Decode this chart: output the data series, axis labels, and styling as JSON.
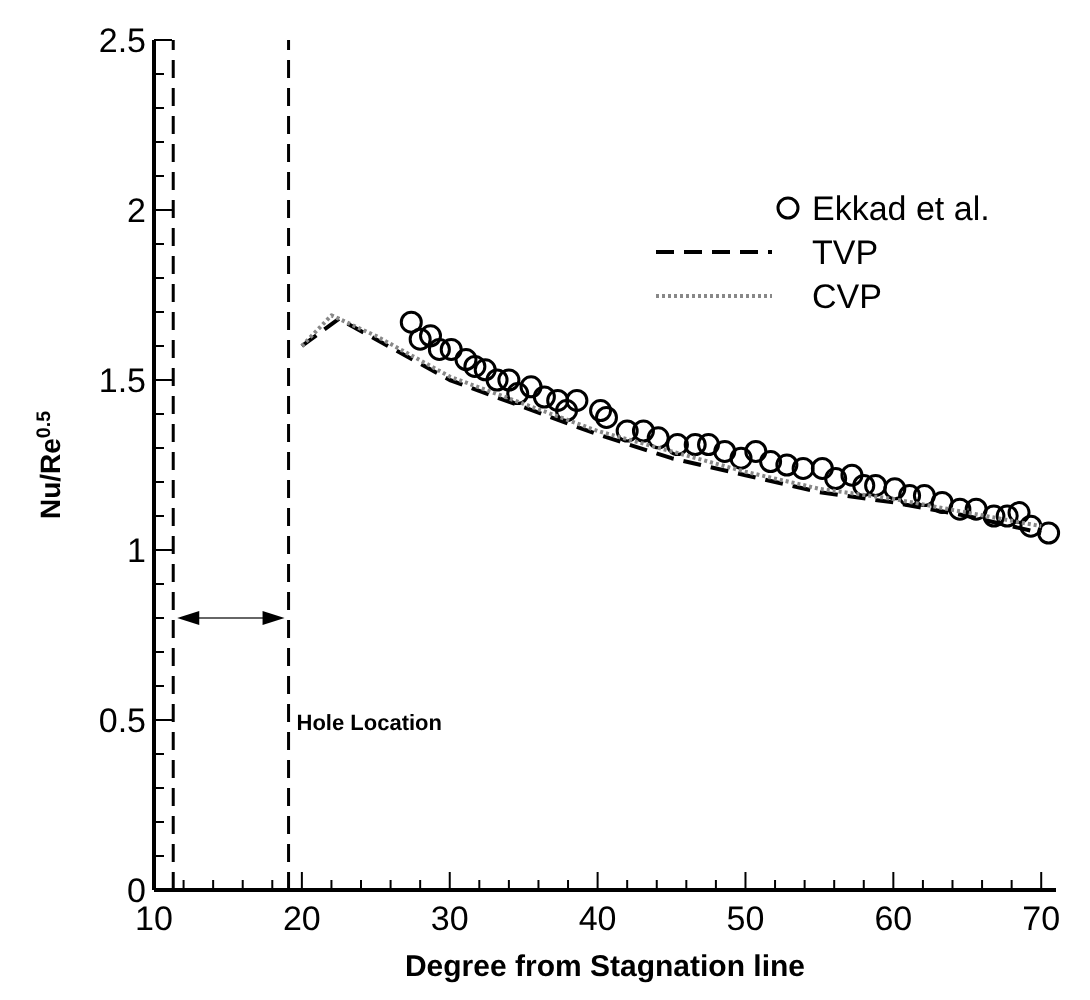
{
  "chart_data": {
    "type": "line",
    "xlabel": "Degree from Stagnation line",
    "ylabel": "Nu/Re$^{0.5}$",
    "xlim": [
      10,
      71
    ],
    "ylim": [
      0,
      2.5
    ],
    "xticks": [
      10,
      {
        "value": 12,
        "label": null
      },
      {
        "value": 14,
        "label": null
      },
      {
        "value": 16,
        "label": null
      },
      {
        "value": 18,
        "label": null
      },
      20,
      {
        "value": 22,
        "label": null
      },
      {
        "value": 24,
        "label": null
      },
      {
        "value": 26,
        "label": null
      },
      {
        "value": 28,
        "label": null
      },
      30,
      {
        "value": 32,
        "label": null
      },
      {
        "value": 34,
        "label": null
      },
      {
        "value": 36,
        "label": null
      },
      {
        "value": 38,
        "label": null
      },
      40,
      {
        "value": 42,
        "label": null
      },
      {
        "value": 44,
        "label": null
      },
      {
        "value": 46,
        "label": null
      },
      {
        "value": 48,
        "label": null
      },
      50,
      {
        "value": 52,
        "label": null
      },
      {
        "value": 54,
        "label": null
      },
      {
        "value": 56,
        "label": null
      },
      {
        "value": 58,
        "label": null
      },
      60,
      {
        "value": 62,
        "label": null
      },
      {
        "value": 64,
        "label": null
      },
      {
        "value": 66,
        "label": null
      },
      {
        "value": 68,
        "label": null
      },
      70
    ],
    "yticks": [
      0,
      {
        "value": 0.1,
        "label": null
      },
      {
        "value": 0.2,
        "label": null
      },
      {
        "value": 0.3,
        "label": null
      },
      {
        "value": 0.4,
        "label": null
      },
      0.5,
      {
        "value": 0.6,
        "label": null
      },
      {
        "value": 0.7,
        "label": null
      },
      {
        "value": 0.8,
        "label": null
      },
      {
        "value": 0.9,
        "label": null
      },
      1,
      {
        "value": 1.1,
        "label": null
      },
      {
        "value": 1.2,
        "label": null
      },
      {
        "value": 1.3,
        "label": null
      },
      {
        "value": 1.4,
        "label": null
      },
      1.5,
      {
        "value": 1.6,
        "label": null
      },
      {
        "value": 1.7,
        "label": null
      },
      {
        "value": 1.8,
        "label": null
      },
      {
        "value": 1.9,
        "label": null
      },
      2,
      {
        "value": 2.1,
        "label": null
      },
      {
        "value": 2.2,
        "label": null
      },
      {
        "value": 2.3,
        "label": null
      },
      {
        "value": 2.4,
        "label": null
      },
      2.5
    ],
    "grid": false,
    "legend": "top right",
    "series": [
      {
        "name": "Ekkad et al.",
        "type": "scatter",
        "marker": "circle",
        "color": "#000000",
        "x": [
          27.4,
          28,
          28.7,
          29.3,
          30.1,
          31.1,
          31.7,
          32.4,
          33.2,
          34,
          34.6,
          35.5,
          36.4,
          37.3,
          37.9,
          38.6,
          40.2,
          40.6,
          42,
          43.1,
          44.1,
          45.4,
          46.6,
          47.5,
          48.6,
          49.7,
          50.7,
          51.7,
          52.8,
          53.9,
          55.2,
          56.1,
          57.2,
          58,
          58.8,
          60.1,
          61.1,
          62.1,
          63.3,
          64.5,
          65.6,
          66.8,
          67.7,
          68.5,
          69.3,
          70.5
        ],
        "values": [
          1.67,
          1.62,
          1.63,
          1.59,
          1.59,
          1.56,
          1.54,
          1.53,
          1.5,
          1.5,
          1.46,
          1.48,
          1.45,
          1.44,
          1.41,
          1.44,
          1.41,
          1.39,
          1.35,
          1.35,
          1.33,
          1.31,
          1.31,
          1.31,
          1.29,
          1.27,
          1.29,
          1.26,
          1.25,
          1.24,
          1.24,
          1.21,
          1.22,
          1.19,
          1.19,
          1.18,
          1.16,
          1.16,
          1.14,
          1.12,
          1.12,
          1.1,
          1.1,
          1.11,
          1.07,
          1.05
        ]
      },
      {
        "name": "TVP",
        "type": "line",
        "line_style": "dashed",
        "color": "#000000",
        "x": [
          20,
          22.5,
          25,
          30,
          35,
          40,
          45,
          50,
          55,
          60,
          65,
          70
        ],
        "values": [
          1.6,
          1.68,
          1.62,
          1.5,
          1.42,
          1.34,
          1.27,
          1.22,
          1.17,
          1.14,
          1.1,
          1.05
        ]
      },
      {
        "name": "CVP",
        "type": "line",
        "line_style": "dotted",
        "color": "#888888",
        "x": [
          20,
          22,
          25,
          30,
          35,
          40,
          45,
          50,
          55,
          60,
          65,
          70
        ],
        "values": [
          1.6,
          1.69,
          1.63,
          1.51,
          1.43,
          1.35,
          1.29,
          1.23,
          1.18,
          1.15,
          1.11,
          1.07
        ]
      }
    ],
    "ref_lines": [
      {
        "axis": "x",
        "value": 11.3,
        "line_style": "dashed",
        "color": "#000000"
      },
      {
        "axis": "x",
        "value": 19.1,
        "line_style": "dashed",
        "color": "#000000"
      }
    ],
    "annotations": [
      {
        "text": "Hole Location",
        "x": 19.1,
        "y": 0.5
      }
    ]
  }
}
